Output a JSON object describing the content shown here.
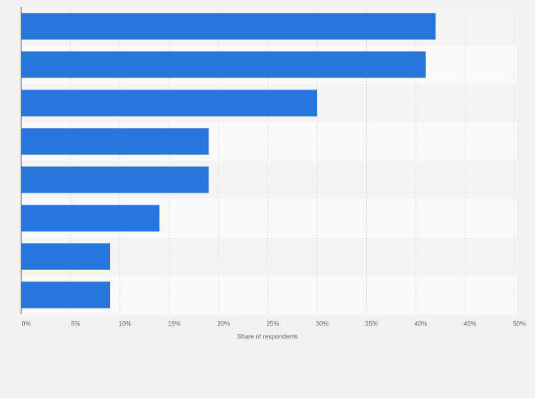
{
  "chart_data": {
    "type": "barh",
    "categories": [
      null,
      null,
      null,
      null,
      null,
      null,
      null,
      null
    ],
    "values": [
      42,
      41,
      30,
      19,
      19,
      14,
      9,
      9
    ],
    "color": "#2776db",
    "xlabel": "Share of respondents",
    "xlim": [
      0,
      50
    ],
    "xticks": [
      {
        "value": 0,
        "label": "0%"
      },
      {
        "value": 5,
        "label": "5%"
      },
      {
        "value": 10,
        "label": "10%"
      },
      {
        "value": 15,
        "label": "15%"
      },
      {
        "value": 20,
        "label": "20%"
      },
      {
        "value": 25,
        "label": "25%"
      },
      {
        "value": 30,
        "label": "30%"
      },
      {
        "value": 35,
        "label": "35%"
      },
      {
        "value": 40,
        "label": "40%"
      },
      {
        "value": 45,
        "label": "45%"
      },
      {
        "value": 50,
        "label": "50%"
      }
    ],
    "grid": true
  }
}
